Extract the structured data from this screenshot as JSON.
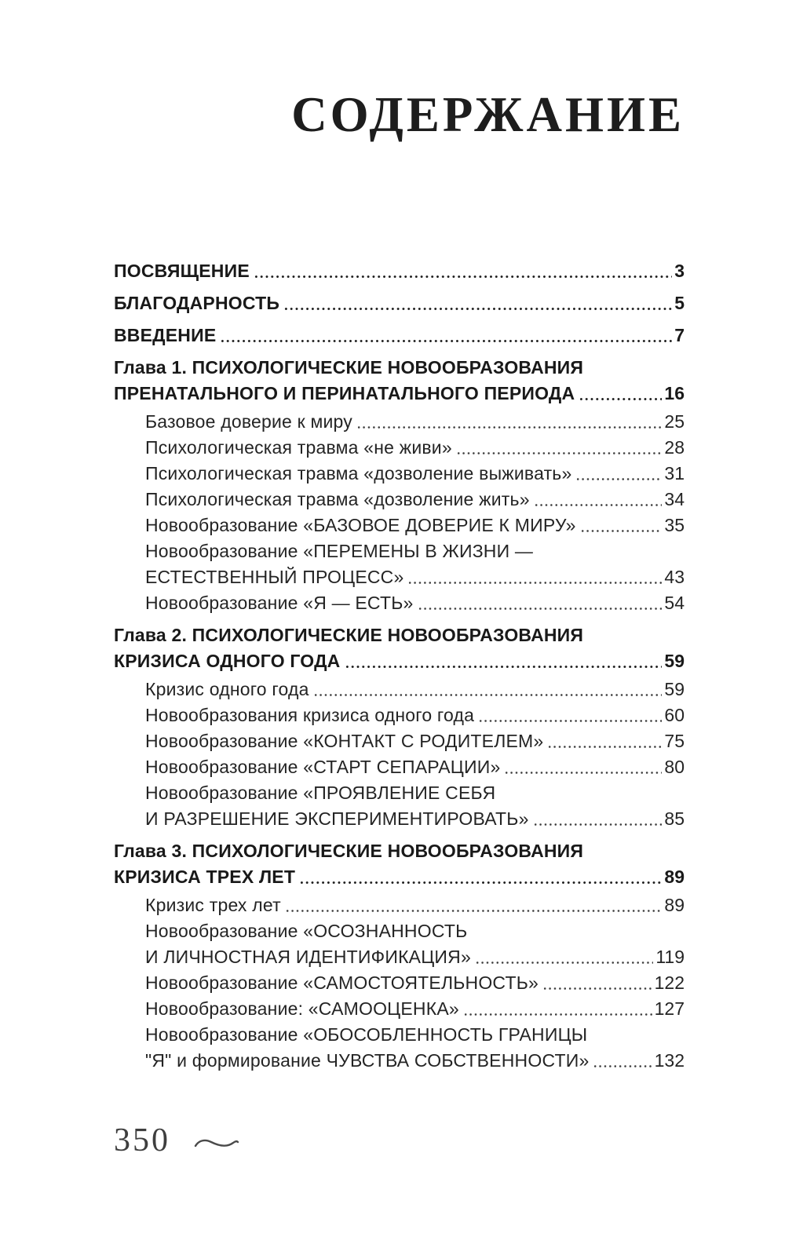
{
  "page": {
    "title": "СОДЕРЖАНИЕ",
    "footer": {
      "page_number": "350",
      "ornament": "tilde-swash"
    }
  },
  "toc": {
    "entries": [
      {
        "bold": true,
        "indent": false,
        "lines": [
          "ПОСВЯЩЕНИЕ"
        ],
        "page": "3"
      },
      {
        "bold": true,
        "indent": false,
        "lines": [
          "БЛАГОДАРНОСТЬ"
        ],
        "page": "5"
      },
      {
        "bold": true,
        "indent": false,
        "lines": [
          "ВВЕДЕНИЕ"
        ],
        "page": "7"
      },
      {
        "bold": true,
        "indent": false,
        "lines": [
          "Глава 1. ПСИХОЛОГИЧЕСКИЕ НОВООБРАЗОВАНИЯ",
          "ПРЕНАТАЛЬНОГО И ПЕРИНАТАЛЬНОГО ПЕРИОДА"
        ],
        "page": "16"
      },
      {
        "bold": false,
        "indent": true,
        "lines": [
          "Базовое доверие к миру"
        ],
        "page": "25"
      },
      {
        "bold": false,
        "indent": true,
        "lines": [
          "Психологическая травма «не живи»"
        ],
        "page": "28"
      },
      {
        "bold": false,
        "indent": true,
        "lines": [
          "Психологическая травма «дозволение выживать»"
        ],
        "page": "31"
      },
      {
        "bold": false,
        "indent": true,
        "lines": [
          "Психологическая травма «дозволение жить»"
        ],
        "page": "34"
      },
      {
        "bold": false,
        "indent": true,
        "lines": [
          "Новообразование «БАЗОВОЕ ДОВЕРИЕ К МИРУ»"
        ],
        "page": "35"
      },
      {
        "bold": false,
        "indent": true,
        "lines": [
          "Новообразование «ПЕРЕМЕНЫ В ЖИЗНИ —",
          "ЕСТЕСТВЕННЫЙ ПРОЦЕСС»"
        ],
        "page": "43"
      },
      {
        "bold": false,
        "indent": true,
        "lines": [
          "Новообразование «Я — ЕСТЬ»"
        ],
        "page": "54"
      },
      {
        "bold": true,
        "indent": false,
        "lines": [
          "Глава 2. ПСИХОЛОГИЧЕСКИЕ НОВООБРАЗОВАНИЯ",
          "КРИЗИСА ОДНОГО ГОДА"
        ],
        "page": "59"
      },
      {
        "bold": false,
        "indent": true,
        "lines": [
          "Кризис одного года"
        ],
        "page": "59"
      },
      {
        "bold": false,
        "indent": true,
        "lines": [
          "Новообразования кризиса одного года"
        ],
        "page": "60"
      },
      {
        "bold": false,
        "indent": true,
        "lines": [
          "Новообразование «КОНТАКТ С РОДИТЕЛЕМ»"
        ],
        "page": "75"
      },
      {
        "bold": false,
        "indent": true,
        "lines": [
          "Новообразование «СТАРТ СЕПАРАЦИИ»"
        ],
        "page": "80"
      },
      {
        "bold": false,
        "indent": true,
        "lines": [
          "Новообразование «ПРОЯВЛЕНИЕ СЕБЯ",
          "И РАЗРЕШЕНИЕ ЭКСПЕРИМЕНТИРОВАТЬ»"
        ],
        "page": "85"
      },
      {
        "bold": true,
        "indent": false,
        "lines": [
          "Глава 3. ПСИХОЛОГИЧЕСКИЕ НОВООБРАЗОВАНИЯ",
          "КРИЗИСА ТРЕХ ЛЕТ"
        ],
        "page": "89"
      },
      {
        "bold": false,
        "indent": true,
        "lines": [
          "Кризис трех лет"
        ],
        "page": "89"
      },
      {
        "bold": false,
        "indent": true,
        "lines": [
          "Новообразование «ОСОЗНАННОСТЬ",
          "И ЛИЧНОСТНАЯ ИДЕНТИФИКАЦИЯ»"
        ],
        "page": "119"
      },
      {
        "bold": false,
        "indent": true,
        "lines": [
          "Новообразование «САМОСТОЯТЕЛЬНОСТЬ»"
        ],
        "page": "122"
      },
      {
        "bold": false,
        "indent": true,
        "lines": [
          "Новообразование: «САМООЦЕНКА»"
        ],
        "page": "127"
      },
      {
        "bold": false,
        "indent": true,
        "lines": [
          "Новообразование «ОБОСОБЛЕННОСТЬ ГРАНИЦЫ",
          "\"Я\" и формирование ЧУВСТВА СОБСТВЕННОСТИ»"
        ],
        "page": "132"
      }
    ]
  },
  "colors": {
    "background": "#ffffff",
    "text": "#242424",
    "bold_text": "#191919",
    "title": "#1d1d1d",
    "folio": "#3e3e3e"
  }
}
